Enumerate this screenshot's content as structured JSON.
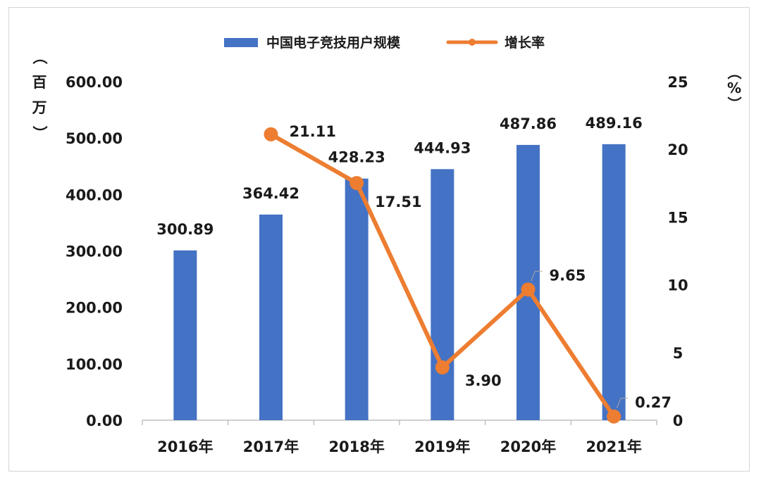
{
  "chart_data": {
    "type": "bar",
    "categories": [
      "2016年",
      "2017年",
      "2018年",
      "2019年",
      "2020年",
      "2021年"
    ],
    "series": [
      {
        "name": "中国电子竞技用户规模",
        "type": "bar",
        "axis": "left",
        "color": "#4472C4",
        "values": [
          300.89,
          364.42,
          428.23,
          444.93,
          487.86,
          489.16
        ],
        "labels": [
          "300.89",
          "364.42",
          "428.23",
          "444.93",
          "487.86",
          "489.16"
        ]
      },
      {
        "name": "增长率",
        "type": "line",
        "axis": "right",
        "color": "#ED7D31",
        "values": [
          null,
          21.11,
          17.51,
          3.9,
          9.65,
          0.27
        ],
        "labels": [
          "",
          "21.11",
          "17.51",
          "3.90",
          "9.65",
          "0.27"
        ]
      }
    ],
    "y_left": {
      "label": "（百万）",
      "ylim": [
        0,
        600
      ],
      "ticks": [
        "0.00",
        "100.00",
        "200.00",
        "300.00",
        "400.00",
        "500.00",
        "600.00"
      ]
    },
    "y_right": {
      "label": "（%）",
      "ylim": [
        0,
        25
      ],
      "ticks": [
        "0",
        "5",
        "10",
        "15",
        "20",
        "25"
      ]
    },
    "legend_position": "top",
    "grid": false
  }
}
